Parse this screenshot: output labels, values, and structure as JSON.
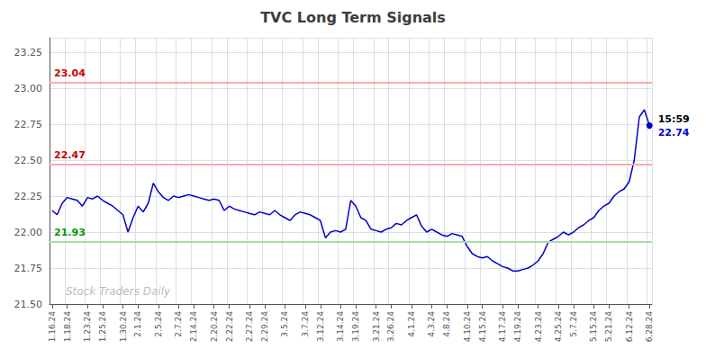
{
  "chart_data": {
    "type": "line",
    "title": "TVC Long Term Signals",
    "color": "#0000cc",
    "grid": true,
    "ylim": [
      21.5,
      23.35
    ],
    "yticks": [
      {
        "value": 21.5,
        "label": "21.50"
      },
      21.75,
      {
        "value": 22.0,
        "label": "22.00"
      },
      22.25,
      {
        "value": 22.5,
        "label": "22.50"
      },
      22.75,
      {
        "value": 23.0,
        "label": "23.00"
      },
      23.25
    ],
    "categories": [
      "1.16.24",
      null,
      null,
      "1.18.24",
      null,
      null,
      null,
      "1.23.24",
      null,
      null,
      "1.25.24",
      null,
      null,
      null,
      "1.30.24",
      null,
      null,
      "2.1.24",
      null,
      null,
      null,
      "2.5.24",
      null,
      null,
      null,
      "2.7.24",
      null,
      null,
      "2.14.24",
      null,
      null,
      null,
      "2.20.24",
      null,
      null,
      "2.22.24",
      null,
      null,
      null,
      "2.27.24",
      null,
      null,
      "2.29.24",
      null,
      null,
      null,
      "3.5.24",
      null,
      null,
      null,
      "3.7.24",
      null,
      null,
      "3.12.24",
      null,
      null,
      null,
      "3.14.24",
      null,
      null,
      "3.19.24",
      null,
      null,
      null,
      "3.21.24",
      null,
      null,
      "3.26.24",
      null,
      null,
      null,
      "4.1.24",
      null,
      null,
      null,
      "4.3.24",
      null,
      null,
      "4.8.24",
      null,
      null,
      null,
      "4.10.24",
      null,
      null,
      "4.15.24",
      null,
      null,
      null,
      "4.17.24",
      null,
      null,
      "4.19.24",
      null,
      null,
      null,
      "4.23.24",
      null,
      null,
      null,
      "4.25.24",
      null,
      null,
      "5.7.24",
      null,
      null,
      null,
      "5.15.24",
      null,
      null,
      "5.21.24",
      null,
      null,
      null,
      "6.12.24",
      null,
      null,
      null,
      "6.28.24"
    ],
    "values": [
      22.15,
      22.12,
      22.2,
      22.24,
      22.23,
      22.22,
      22.18,
      22.24,
      22.23,
      22.25,
      22.22,
      22.2,
      22.18,
      22.15,
      22.12,
      22.0,
      22.1,
      22.18,
      22.14,
      22.2,
      22.34,
      22.28,
      22.24,
      22.22,
      22.25,
      22.24,
      22.25,
      22.26,
      22.25,
      22.24,
      22.23,
      22.22,
      22.23,
      22.22,
      22.15,
      22.18,
      22.16,
      22.15,
      22.14,
      22.13,
      22.12,
      22.14,
      22.13,
      22.12,
      22.15,
      22.12,
      22.1,
      22.08,
      22.12,
      22.14,
      22.13,
      22.12,
      22.1,
      22.08,
      21.96,
      22.0,
      22.01,
      22.0,
      22.02,
      22.22,
      22.18,
      22.1,
      22.08,
      22.02,
      22.01,
      22.0,
      22.02,
      22.03,
      22.06,
      22.05,
      22.08,
      22.1,
      22.12,
      22.04,
      22.0,
      22.02,
      22.0,
      21.98,
      21.97,
      21.99,
      21.98,
      21.97,
      21.9,
      21.85,
      21.83,
      21.82,
      21.83,
      21.8,
      21.78,
      21.76,
      21.75,
      21.73,
      21.73,
      21.74,
      21.75,
      21.77,
      21.8,
      21.85,
      21.93,
      21.95,
      21.97,
      22.0,
      21.98,
      22.0,
      22.03,
      22.05,
      22.08,
      22.1,
      22.15,
      22.18,
      22.2,
      22.25,
      22.28,
      22.3,
      22.35,
      22.5,
      22.8,
      22.85,
      22.74
    ],
    "reference_lines": [
      {
        "value": 23.04,
        "color": "#ffaaaa",
        "label": "23.04",
        "label_color": "#cc0000"
      },
      {
        "value": 22.47,
        "color": "#ffaaaa",
        "label": "22.47",
        "label_color": "#cc0000"
      },
      {
        "value": 21.93,
        "color": "#aaddaa",
        "label": "21.93",
        "label_color": "#009900"
      }
    ],
    "last_point_labels": [
      {
        "text": "15:59",
        "color": "#000000"
      },
      {
        "text": "22.74",
        "color": "#0000cc"
      }
    ],
    "watermark": {
      "text": "Stock Traders Daily",
      "color": "#bbbbbb"
    }
  }
}
